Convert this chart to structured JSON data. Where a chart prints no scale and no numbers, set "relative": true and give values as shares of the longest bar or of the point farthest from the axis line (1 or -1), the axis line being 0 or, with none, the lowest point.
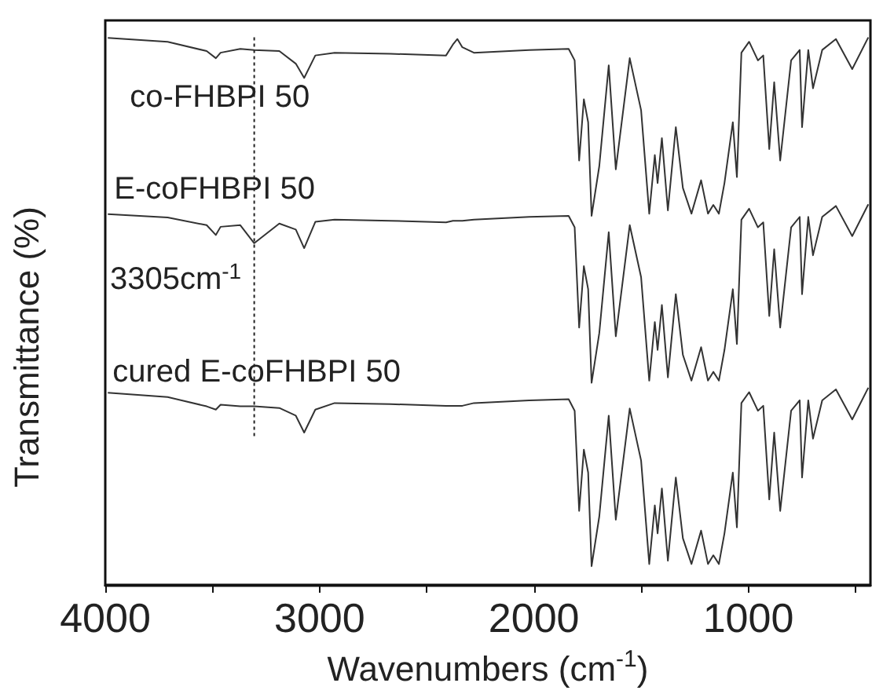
{
  "chart_data": {
    "type": "line",
    "relative": true,
    "xlabel": "Wavenumbers (cm$^{-1}$)",
    "ylabel": "Transmittance (%)",
    "xlim": [
      4000,
      430
    ],
    "xticks": [
      4000,
      {
        "value": 3500,
        "label": null
      },
      3000,
      {
        "value": 2500,
        "label": null
      },
      2000,
      {
        "value": 1500,
        "label": null
      },
      1000,
      {
        "value": 500,
        "label": null
      }
    ],
    "x": [
      3988,
      3709,
      3527,
      3484,
      3462,
      3370,
      3305,
      3188,
      3111,
      3072,
      3020,
      2930,
      2669,
      2410,
      2378,
      2357,
      2334,
      2280,
      2022,
      1838,
      1810,
      1789,
      1767,
      1747,
      1731,
      1695,
      1651,
      1618,
      1553,
      1500,
      1462,
      1436,
      1423,
      1403,
      1375,
      1338,
      1305,
      1265,
      1220,
      1188,
      1163,
      1137,
      1111,
      1072,
      1053,
      1032,
      996,
      955,
      930,
      902,
      879,
      851,
      800,
      760,
      749,
      720,
      698,
      655,
      591,
      515,
      440
    ],
    "series": [
      {
        "name": "co-FHBPI 50",
        "color": "#333333",
        "values": [
          0.999,
          0.992,
          0.975,
          0.962,
          0.972,
          0.979,
          0.977,
          0.975,
          0.952,
          0.926,
          0.967,
          0.972,
          0.97,
          0.967,
          0.987,
          0.997,
          0.982,
          0.972,
          0.977,
          0.979,
          0.958,
          0.775,
          0.887,
          0.845,
          0.674,
          0.765,
          0.949,
          0.759,
          0.962,
          0.867,
          0.678,
          0.785,
          0.734,
          0.816,
          0.684,
          0.836,
          0.725,
          0.678,
          0.739,
          0.678,
          0.694,
          0.678,
          0.734,
          0.845,
          0.745,
          0.972,
          0.992,
          0.958,
          0.967,
          0.796,
          0.918,
          0.775,
          0.958,
          0.977,
          0.836,
          0.977,
          0.907,
          0.977,
          0.997,
          0.942,
          1.0
        ]
      },
      {
        "name": "E-coFHBPI 50",
        "color": "#333333",
        "values": [
          0.677,
          0.671,
          0.657,
          0.639,
          0.654,
          0.657,
          0.624,
          0.66,
          0.649,
          0.615,
          0.663,
          0.667,
          0.665,
          0.662,
          0.665,
          0.665,
          0.665,
          0.667,
          0.672,
          0.674,
          0.653,
          0.47,
          0.582,
          0.54,
          0.369,
          0.46,
          0.644,
          0.454,
          0.657,
          0.562,
          0.373,
          0.48,
          0.429,
          0.511,
          0.379,
          0.531,
          0.42,
          0.373,
          0.434,
          0.373,
          0.389,
          0.373,
          0.429,
          0.54,
          0.44,
          0.667,
          0.687,
          0.653,
          0.662,
          0.491,
          0.613,
          0.47,
          0.653,
          0.672,
          0.531,
          0.672,
          0.602,
          0.672,
          0.692,
          0.637,
          0.695
        ]
      },
      {
        "name": "cured E-coFHBPI 50",
        "color": "#333333",
        "values": [
          0.351,
          0.343,
          0.326,
          0.32,
          0.329,
          0.326,
          0.326,
          0.323,
          0.309,
          0.278,
          0.32,
          0.332,
          0.33,
          0.327,
          0.327,
          0.327,
          0.327,
          0.332,
          0.337,
          0.339,
          0.318,
          0.135,
          0.247,
          0.205,
          0.034,
          0.125,
          0.309,
          0.119,
          0.322,
          0.227,
          0.038,
          0.145,
          0.094,
          0.176,
          0.044,
          0.196,
          0.085,
          0.038,
          0.099,
          0.038,
          0.054,
          0.038,
          0.094,
          0.205,
          0.105,
          0.332,
          0.352,
          0.318,
          0.327,
          0.156,
          0.278,
          0.135,
          0.318,
          0.337,
          0.196,
          0.337,
          0.267,
          0.337,
          0.357,
          0.302,
          0.36
        ]
      }
    ],
    "ref_lines": [
      {
        "axis": "x",
        "value": 3305,
        "line_style": "dotted",
        "color": "#222222"
      }
    ],
    "annotations": [
      "3305cm$^{-1}$"
    ],
    "grid": false,
    "legend": false
  }
}
